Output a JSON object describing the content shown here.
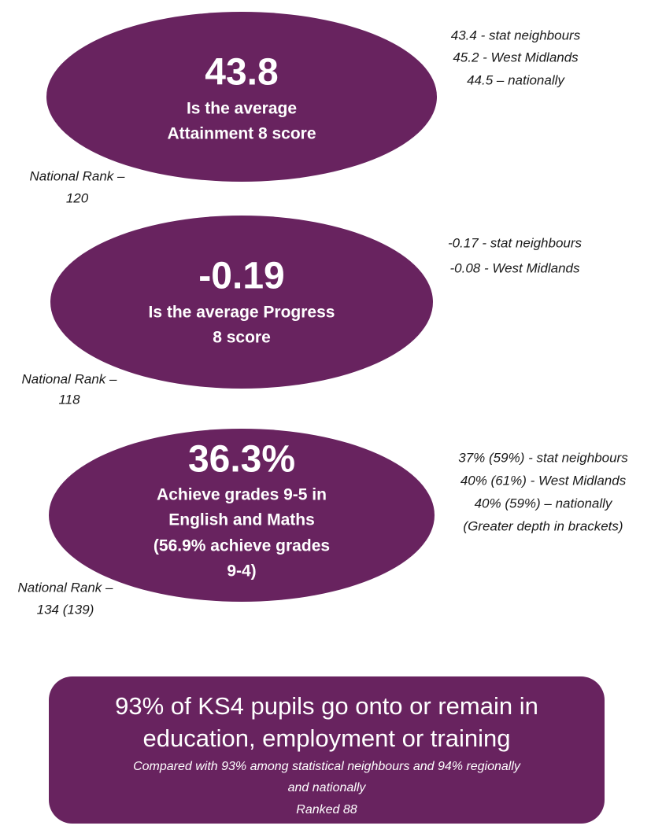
{
  "blocks": [
    {
      "headline": "43.8",
      "description": [
        "Is the average",
        "Attainment 8 score"
      ],
      "comparisons": [
        "43.4 - stat neighbours",
        "45.2 - West Midlands",
        "44.5 – nationally"
      ],
      "rank": [
        "National Rank –",
        "120"
      ]
    },
    {
      "headline": "-0.19",
      "description": [
        "Is the average Progress",
        "8 score"
      ],
      "comparisons": [
        "-0.17 - stat neighbours",
        "-0.08 - West Midlands"
      ],
      "rank": [
        "National Rank –",
        "118"
      ]
    },
    {
      "headline": "36.3%",
      "description": [
        "Achieve grades 9-5 in",
        "English and Maths",
        "(56.9% achieve grades",
        "9-4)"
      ],
      "comparisons": [
        "37% (59%) - stat neighbours",
        "40% (61%) - West Midlands",
        "40% (59%) – nationally",
        "(Greater depth in brackets)"
      ],
      "rank": [
        "National Rank –",
        "134 (139)"
      ]
    }
  ],
  "footer": {
    "title": [
      "93% of KS4 pupils go onto or remain in",
      "education, employment or training"
    ],
    "note": [
      "Compared with 93% among statistical neighbours and 94% regionally",
      "and nationally",
      "Ranked 88"
    ]
  }
}
